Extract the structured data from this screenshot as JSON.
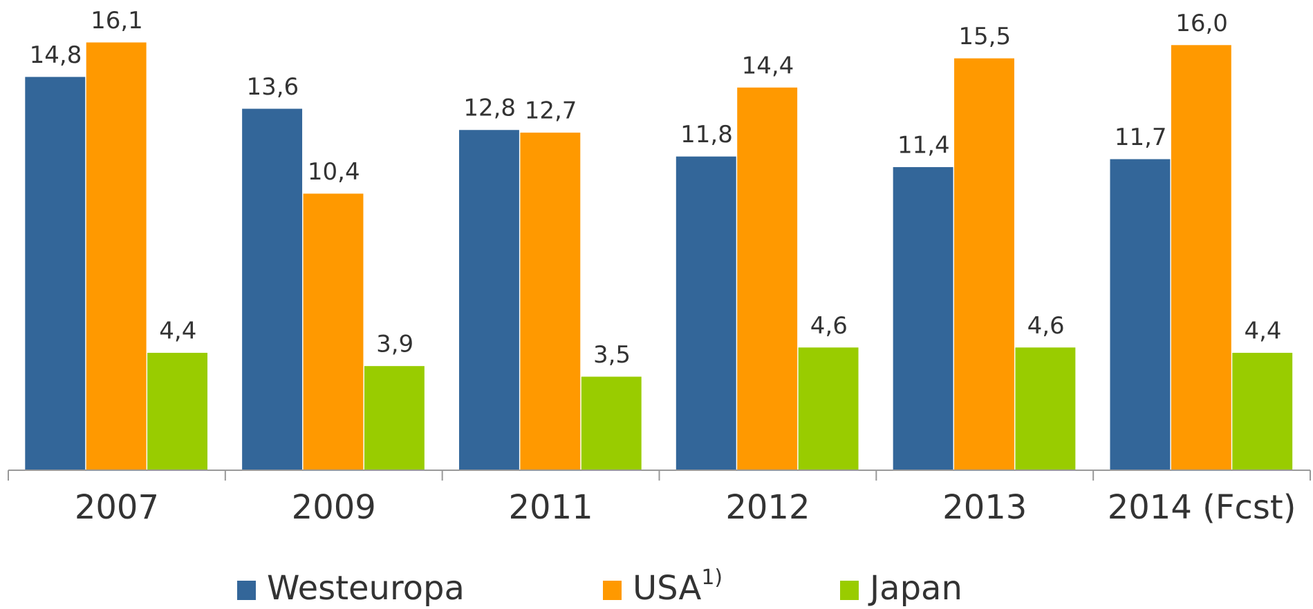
{
  "chart_data": {
    "type": "bar",
    "categories": [
      "2007",
      "2009",
      "2011",
      "2012",
      "2013",
      "2014 (Fcst)"
    ],
    "series": [
      {
        "name": "Westeuropa",
        "color": "#336699",
        "values": [
          14.8,
          13.6,
          12.8,
          11.8,
          11.4,
          11.7
        ],
        "value_labels": [
          "14,8",
          "13,6",
          "12,8",
          "11,8",
          "11,4",
          "11,7"
        ]
      },
      {
        "name": "USA",
        "footnote": "1)",
        "color": "#ff9900",
        "values": [
          16.1,
          10.4,
          12.7,
          14.4,
          15.5,
          16.0
        ],
        "value_labels": [
          "16,1",
          "10,4",
          "12,7",
          "14,4",
          "15,5",
          "16,0"
        ]
      },
      {
        "name": "Japan",
        "color": "#99cc00",
        "values": [
          4.4,
          3.9,
          3.5,
          4.6,
          4.6,
          4.4
        ],
        "value_labels": [
          "4,4",
          "3,9",
          "3,5",
          "4,6",
          "4,6",
          "4,4"
        ]
      }
    ],
    "ylim": [
      0,
      17.7
    ],
    "legend": "bottom"
  }
}
